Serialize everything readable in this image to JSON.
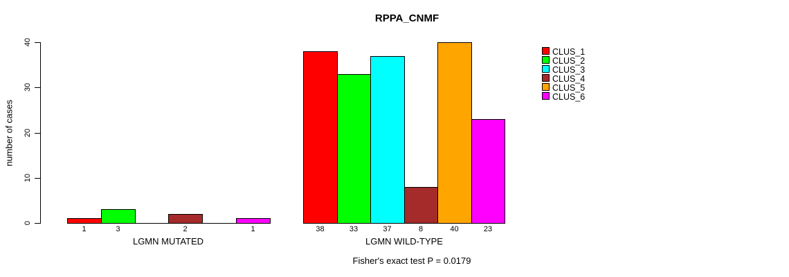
{
  "chart_data": {
    "type": "bar",
    "title": "RPPA_CNMF",
    "ylabel": "number of cases",
    "xlabel": "",
    "ylim": [
      0,
      40
    ],
    "yticks": [
      0,
      10,
      20,
      30,
      40
    ],
    "grid": false,
    "legend_position": "right",
    "categories": [
      "CLUS_1",
      "CLUS_2",
      "CLUS_3",
      "CLUS_4",
      "CLUS_5",
      "CLUS_6"
    ],
    "colors": [
      "#ff0000",
      "#00ff00",
      "#00ffff",
      "#a52a2a",
      "#ffa500",
      "#ff00ff"
    ],
    "groups": [
      {
        "label": "LGMN MUTATED",
        "values": [
          1,
          3,
          0,
          2,
          0,
          1
        ]
      },
      {
        "label": "LGMN WILD-TYPE",
        "values": [
          38,
          33,
          37,
          8,
          40,
          23
        ]
      }
    ],
    "annotation": "Fisher's exact test P = 0.0179"
  }
}
